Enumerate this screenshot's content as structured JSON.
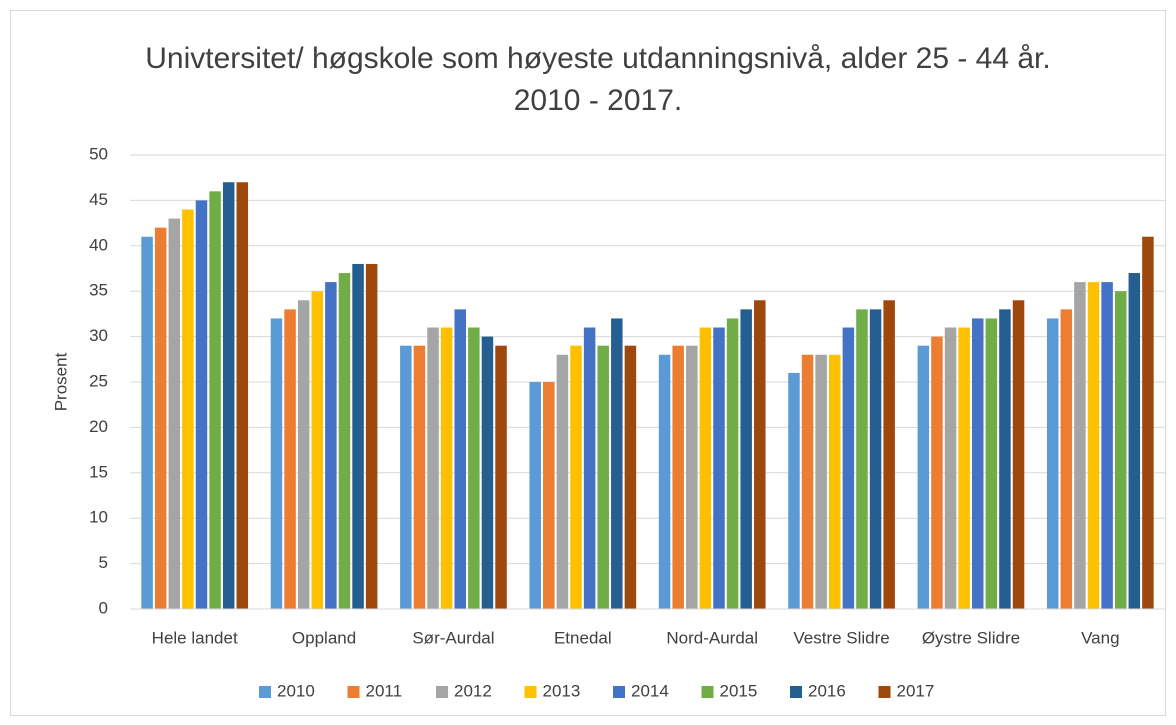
{
  "chart_data": {
    "type": "bar",
    "title": "Univtersitet/ høgskole som høyeste utdanningsnivå, alder 25 - 44 år. 2010 - 2017.",
    "y_label": "Prosent",
    "categories": [
      "Hele landet",
      "Oppland",
      "Sør-Aurdal",
      "Etnedal",
      "Nord-Aurdal",
      "Vestre Slidre",
      "Øystre Slidre",
      "Vang"
    ],
    "series": [
      {
        "name": "2010",
        "color": "#5b9bd5",
        "values": [
          41,
          32,
          29,
          25,
          28,
          26,
          29,
          32
        ]
      },
      {
        "name": "2011",
        "color": "#ed7d31",
        "values": [
          42,
          33,
          29,
          25,
          29,
          28,
          30,
          33
        ]
      },
      {
        "name": "2012",
        "color": "#a5a5a5",
        "values": [
          43,
          34,
          31,
          28,
          29,
          28,
          31,
          36
        ]
      },
      {
        "name": "2013",
        "color": "#ffc000",
        "values": [
          44,
          35,
          31,
          29,
          31,
          28,
          31,
          36
        ]
      },
      {
        "name": "2014",
        "color": "#4472c4",
        "values": [
          45,
          36,
          33,
          31,
          31,
          31,
          32,
          36
        ]
      },
      {
        "name": "2015",
        "color": "#70ad47",
        "values": [
          46,
          37,
          31,
          29,
          32,
          33,
          32,
          35
        ]
      },
      {
        "name": "2016",
        "color": "#255e91",
        "values": [
          47,
          38,
          30,
          32,
          33,
          33,
          33,
          37
        ]
      },
      {
        "name": "2017",
        "color": "#9e480e",
        "values": [
          47,
          38,
          29,
          29,
          34,
          34,
          34,
          41
        ]
      }
    ],
    "ylim": [
      0,
      50
    ],
    "yticks": [
      0,
      5,
      10,
      15,
      20,
      25,
      30,
      35,
      40,
      45,
      50
    ],
    "grid": true,
    "legend": "bottom"
  }
}
